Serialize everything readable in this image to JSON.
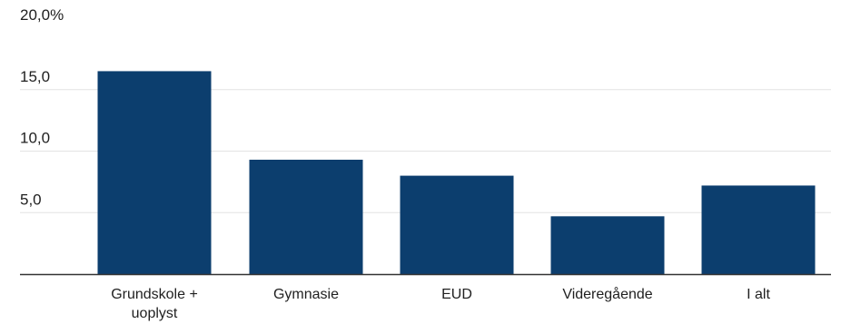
{
  "chart_data": {
    "type": "bar",
    "categories": [
      [
        "Grundskole +",
        "uoplyst"
      ],
      [
        "Gymnasie"
      ],
      [
        "EUD"
      ],
      [
        "Videregående"
      ],
      [
        "I alt"
      ]
    ],
    "values": [
      16.5,
      9.3,
      8.0,
      4.7,
      7.2
    ],
    "ylim": [
      0,
      20
    ],
    "yticks": [
      {
        "value": 5,
        "label": "5,0"
      },
      {
        "value": 10,
        "label": "10,0"
      },
      {
        "value": 15,
        "label": "15,0"
      },
      {
        "value": 20,
        "label": "20,0%"
      }
    ],
    "bar_color": "#0c3e6e",
    "axis_color": "#333333",
    "grid_color": "#e3e3e3",
    "grid": true
  }
}
